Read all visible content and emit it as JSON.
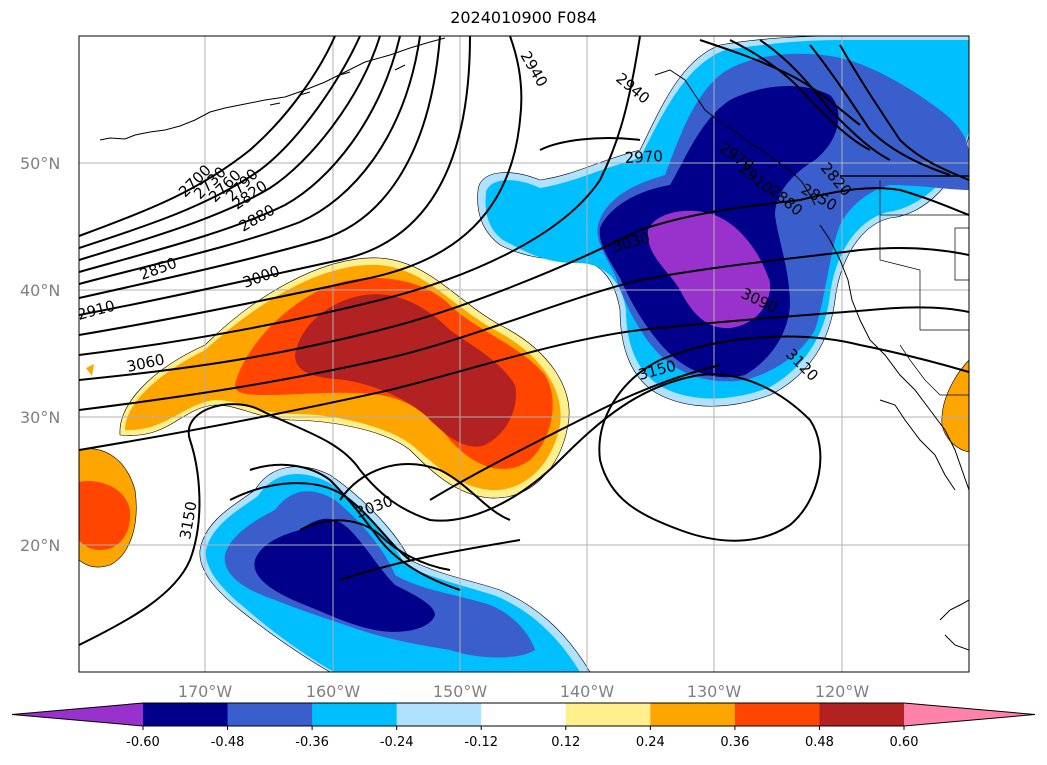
{
  "title": "2024010900 F084",
  "lat_labels": [
    "50°N",
    "40°N",
    "30°N",
    "20°N"
  ],
  "lon_labels": [
    "170°W",
    "160°W",
    "150°W",
    "140°W",
    "130°W",
    "120°W"
  ],
  "contour_labels": [
    "2700",
    "2730",
    "2760",
    "2790",
    "2820",
    "2850",
    "2880",
    "2910",
    "2940",
    "2940",
    "2970",
    "2970",
    "3000",
    "3030",
    "3030",
    "3060",
    "3090",
    "3120",
    "3150",
    "3150",
    "2820",
    "2850",
    "2880",
    "2910"
  ],
  "colorbar": {
    "ticks": [
      "-0.60",
      "-0.48",
      "-0.36",
      "-0.24",
      "-0.12",
      "0.12",
      "0.24",
      "0.36",
      "0.48",
      "0.60"
    ],
    "colors": [
      "#9932cc",
      "#00008b",
      "#3a5fcd",
      "#00bfff",
      "#b0e2ff",
      "#ffffff",
      "#fff08c",
      "#ffa500",
      "#ff4500",
      "#b22222",
      "#ff82ab"
    ]
  },
  "field_colors": {
    "neg_strong": "#9932cc",
    "neg_2": "#00008b",
    "neg_3": "#3a5fcd",
    "neg_4": "#00bfff",
    "neg_5": "#b0e2ff",
    "pos_1": "#fff08c",
    "pos_2": "#ffa500",
    "pos_3": "#ff4500",
    "pos_4": "#b22222"
  }
}
